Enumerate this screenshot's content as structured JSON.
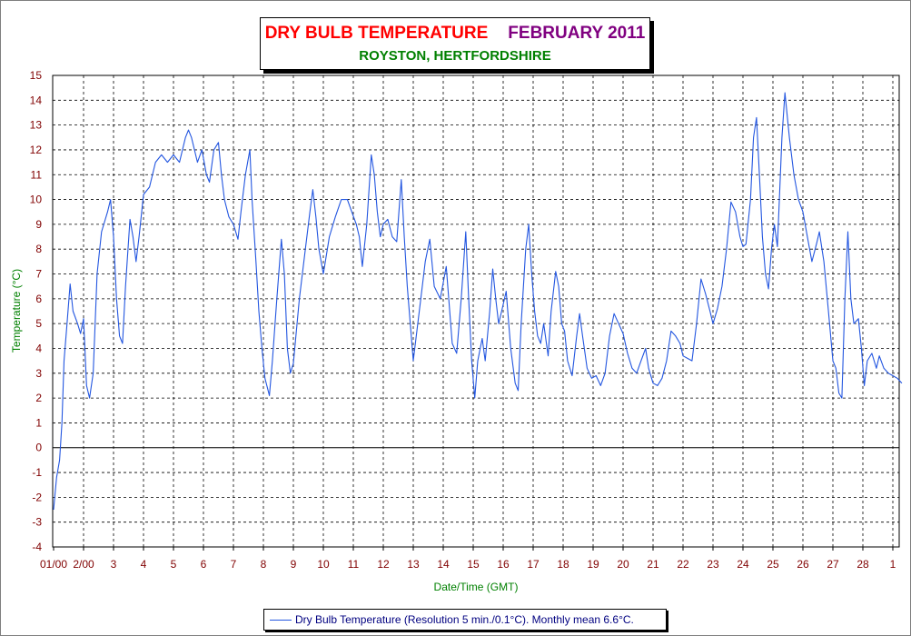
{
  "title": {
    "main": "DRY BULB TEMPERATURE",
    "date": "FEBRUARY 2011",
    "subtitle": "ROYSTON, HERTFORDSHIRE"
  },
  "colors": {
    "title_main": "#ff0000",
    "title_date": "#800080",
    "subtitle": "#008000",
    "axis_labels": "#008000",
    "tick_labels": "#800000",
    "series": "#2356e0",
    "grid": "#000000",
    "legend_text": "#000080"
  },
  "legend": {
    "text": "Dry Bulb Temperature (Resolution 5 min./0.1°C). Monthly mean 6.6°C.",
    "placement": "bottom-center"
  },
  "chart_data": {
    "type": "line",
    "xlabel": "Date/Time (GMT)",
    "ylabel": "Temperature (°C)",
    "ylim": [
      -4,
      15
    ],
    "xlim": [
      1,
      29.3
    ],
    "grid": true,
    "y_ticks": [
      "15",
      "14",
      "13",
      "12",
      "11",
      "10",
      "9",
      "8",
      "7",
      "6",
      "5",
      "4",
      "3",
      "2",
      "1",
      "0",
      "-1",
      "-2",
      "-3",
      "-4"
    ],
    "x_ticks": [
      {
        "x": 1,
        "label": "01/00"
      },
      {
        "x": 2,
        "label": "2/00"
      },
      {
        "x": 3,
        "label": "3"
      },
      {
        "x": 4,
        "label": "4"
      },
      {
        "x": 5,
        "label": "5"
      },
      {
        "x": 6,
        "label": "6"
      },
      {
        "x": 7,
        "label": "7"
      },
      {
        "x": 8,
        "label": "8"
      },
      {
        "x": 9,
        "label": "9"
      },
      {
        "x": 10,
        "label": "10"
      },
      {
        "x": 11,
        "label": "11"
      },
      {
        "x": 12,
        "label": "12"
      },
      {
        "x": 13,
        "label": "13"
      },
      {
        "x": 14,
        "label": "14"
      },
      {
        "x": 15,
        "label": "15"
      },
      {
        "x": 16,
        "label": "16"
      },
      {
        "x": 17,
        "label": "17"
      },
      {
        "x": 18,
        "label": "18"
      },
      {
        "x": 19,
        "label": "19"
      },
      {
        "x": 20,
        "label": "20"
      },
      {
        "x": 21,
        "label": "21"
      },
      {
        "x": 22,
        "label": "22"
      },
      {
        "x": 23,
        "label": "23"
      },
      {
        "x": 24,
        "label": "24"
      },
      {
        "x": 25,
        "label": "25"
      },
      {
        "x": 26,
        "label": "26"
      },
      {
        "x": 27,
        "label": "27"
      },
      {
        "x": 28,
        "label": "28"
      },
      {
        "x": 29,
        "label": "1"
      }
    ],
    "series": [
      {
        "name": "Dry Bulb Temperature",
        "points": [
          [
            1.0,
            -2.5
          ],
          [
            1.1,
            -1.2
          ],
          [
            1.2,
            -0.5
          ],
          [
            1.28,
            1.0
          ],
          [
            1.35,
            3.5
          ],
          [
            1.45,
            5.0
          ],
          [
            1.55,
            6.6
          ],
          [
            1.65,
            5.5
          ],
          [
            1.8,
            5.0
          ],
          [
            1.9,
            4.6
          ],
          [
            2.0,
            5.2
          ],
          [
            2.1,
            2.5
          ],
          [
            2.2,
            2.0
          ],
          [
            2.32,
            3.0
          ],
          [
            2.45,
            7.0
          ],
          [
            2.6,
            8.7
          ],
          [
            2.8,
            9.5
          ],
          [
            2.9,
            10.0
          ],
          [
            3.0,
            8.5
          ],
          [
            3.1,
            6.0
          ],
          [
            3.2,
            4.5
          ],
          [
            3.3,
            4.2
          ],
          [
            3.4,
            6.5
          ],
          [
            3.55,
            9.2
          ],
          [
            3.65,
            8.5
          ],
          [
            3.75,
            7.5
          ],
          [
            3.85,
            8.5
          ],
          [
            4.0,
            10.2
          ],
          [
            4.2,
            10.5
          ],
          [
            4.4,
            11.5
          ],
          [
            4.6,
            11.8
          ],
          [
            4.8,
            11.5
          ],
          [
            5.0,
            11.8
          ],
          [
            5.2,
            11.5
          ],
          [
            5.4,
            12.5
          ],
          [
            5.5,
            12.8
          ],
          [
            5.6,
            12.5
          ],
          [
            5.8,
            11.5
          ],
          [
            5.95,
            12.0
          ],
          [
            6.1,
            11.0
          ],
          [
            6.2,
            10.7
          ],
          [
            6.35,
            12.0
          ],
          [
            6.5,
            12.3
          ],
          [
            6.6,
            11.0
          ],
          [
            6.7,
            10.0
          ],
          [
            6.85,
            9.3
          ],
          [
            7.0,
            9.0
          ],
          [
            7.15,
            8.4
          ],
          [
            7.25,
            9.5
          ],
          [
            7.4,
            11.0
          ],
          [
            7.55,
            12.0
          ],
          [
            7.62,
            10.0
          ],
          [
            7.75,
            7.5
          ],
          [
            7.85,
            5.5
          ],
          [
            7.95,
            4.0
          ],
          [
            8.05,
            2.8
          ],
          [
            8.2,
            2.1
          ],
          [
            8.3,
            3.5
          ],
          [
            8.45,
            6.0
          ],
          [
            8.6,
            8.4
          ],
          [
            8.7,
            7.0
          ],
          [
            8.8,
            4.0
          ],
          [
            8.9,
            3.0
          ],
          [
            9.0,
            3.4
          ],
          [
            9.2,
            6.0
          ],
          [
            9.4,
            8.0
          ],
          [
            9.55,
            9.5
          ],
          [
            9.65,
            10.4
          ],
          [
            9.75,
            9.3
          ],
          [
            9.85,
            8.0
          ],
          [
            10.0,
            7.0
          ],
          [
            10.2,
            8.5
          ],
          [
            10.4,
            9.3
          ],
          [
            10.6,
            10.0
          ],
          [
            10.8,
            10.0
          ],
          [
            10.95,
            9.5
          ],
          [
            11.1,
            9.0
          ],
          [
            11.2,
            8.5
          ],
          [
            11.3,
            7.3
          ],
          [
            11.45,
            9.0
          ],
          [
            11.6,
            11.8
          ],
          [
            11.7,
            11.0
          ],
          [
            11.8,
            9.5
          ],
          [
            11.9,
            8.5
          ],
          [
            12.0,
            9.0
          ],
          [
            12.15,
            9.2
          ],
          [
            12.3,
            8.5
          ],
          [
            12.45,
            8.3
          ],
          [
            12.6,
            10.8
          ],
          [
            12.7,
            8.5
          ],
          [
            12.8,
            6.5
          ],
          [
            12.9,
            5.0
          ],
          [
            13.0,
            3.5
          ],
          [
            13.1,
            4.5
          ],
          [
            13.25,
            6.0
          ],
          [
            13.4,
            7.5
          ],
          [
            13.55,
            8.4
          ],
          [
            13.7,
            6.5
          ],
          [
            13.9,
            6.0
          ],
          [
            14.1,
            7.3
          ],
          [
            14.3,
            4.2
          ],
          [
            14.45,
            3.8
          ],
          [
            14.6,
            6.0
          ],
          [
            14.75,
            8.7
          ],
          [
            14.85,
            6.0
          ],
          [
            14.95,
            3.5
          ],
          [
            15.05,
            2.0
          ],
          [
            15.15,
            3.5
          ],
          [
            15.3,
            4.4
          ],
          [
            15.4,
            3.5
          ],
          [
            15.55,
            5.5
          ],
          [
            15.65,
            7.2
          ],
          [
            15.75,
            6.0
          ],
          [
            15.85,
            5.0
          ],
          [
            15.95,
            5.5
          ],
          [
            16.1,
            6.3
          ],
          [
            16.25,
            4.0
          ],
          [
            16.4,
            2.6
          ],
          [
            16.5,
            2.3
          ],
          [
            16.6,
            5.0
          ],
          [
            16.75,
            8.0
          ],
          [
            16.85,
            9.0
          ],
          [
            16.95,
            7.0
          ],
          [
            17.05,
            5.5
          ],
          [
            17.15,
            4.5
          ],
          [
            17.25,
            4.2
          ],
          [
            17.35,
            5.0
          ],
          [
            17.5,
            3.7
          ],
          [
            17.6,
            5.5
          ],
          [
            17.75,
            7.1
          ],
          [
            17.85,
            6.5
          ],
          [
            17.95,
            5.0
          ],
          [
            18.05,
            4.7
          ],
          [
            18.15,
            3.5
          ],
          [
            18.3,
            2.9
          ],
          [
            18.45,
            4.5
          ],
          [
            18.55,
            5.4
          ],
          [
            18.65,
            4.5
          ],
          [
            18.8,
            3.2
          ],
          [
            18.95,
            2.8
          ],
          [
            19.1,
            2.9
          ],
          [
            19.25,
            2.5
          ],
          [
            19.4,
            3.0
          ],
          [
            19.55,
            4.5
          ],
          [
            19.7,
            5.4
          ],
          [
            19.85,
            5.0
          ],
          [
            20.0,
            4.6
          ],
          [
            20.15,
            3.8
          ],
          [
            20.3,
            3.2
          ],
          [
            20.45,
            3.0
          ],
          [
            20.6,
            3.5
          ],
          [
            20.75,
            4.0
          ],
          [
            20.85,
            3.2
          ],
          [
            21.0,
            2.6
          ],
          [
            21.15,
            2.5
          ],
          [
            21.3,
            2.8
          ],
          [
            21.45,
            3.5
          ],
          [
            21.6,
            4.7
          ],
          [
            21.75,
            4.5
          ],
          [
            21.9,
            4.2
          ],
          [
            22.0,
            3.7
          ],
          [
            22.15,
            3.6
          ],
          [
            22.3,
            3.5
          ],
          [
            22.45,
            5.0
          ],
          [
            22.6,
            6.8
          ],
          [
            22.75,
            6.2
          ],
          [
            22.9,
            5.5
          ],
          [
            23.0,
            5.0
          ],
          [
            23.15,
            5.6
          ],
          [
            23.3,
            6.5
          ],
          [
            23.45,
            8.0
          ],
          [
            23.6,
            9.9
          ],
          [
            23.75,
            9.5
          ],
          [
            23.9,
            8.5
          ],
          [
            24.0,
            8.1
          ],
          [
            24.1,
            8.2
          ],
          [
            24.25,
            10.0
          ],
          [
            24.35,
            12.5
          ],
          [
            24.45,
            13.3
          ],
          [
            24.55,
            11.0
          ],
          [
            24.65,
            8.5
          ],
          [
            24.75,
            7.0
          ],
          [
            24.85,
            6.4
          ],
          [
            24.95,
            8.0
          ],
          [
            25.05,
            9.0
          ],
          [
            25.15,
            8.1
          ],
          [
            25.3,
            12.5
          ],
          [
            25.4,
            14.3
          ],
          [
            25.55,
            12.5
          ],
          [
            25.7,
            11.0
          ],
          [
            25.85,
            10.0
          ],
          [
            26.0,
            9.5
          ],
          [
            26.15,
            8.5
          ],
          [
            26.3,
            7.5
          ],
          [
            26.45,
            8.2
          ],
          [
            26.55,
            8.7
          ],
          [
            26.7,
            7.5
          ],
          [
            26.85,
            5.5
          ],
          [
            27.0,
            3.5
          ],
          [
            27.1,
            3.2
          ],
          [
            27.2,
            2.2
          ],
          [
            27.3,
            2.0
          ],
          [
            27.4,
            6.0
          ],
          [
            27.5,
            8.7
          ],
          [
            27.6,
            6.0
          ],
          [
            27.7,
            5.0
          ],
          [
            27.85,
            5.2
          ],
          [
            27.95,
            4.0
          ],
          [
            28.05,
            2.5
          ],
          [
            28.15,
            3.5
          ],
          [
            28.3,
            3.8
          ],
          [
            28.45,
            3.2
          ],
          [
            28.55,
            3.7
          ],
          [
            28.7,
            3.2
          ],
          [
            28.85,
            3.0
          ],
          [
            29.0,
            2.9
          ],
          [
            29.15,
            2.8
          ],
          [
            29.3,
            2.6
          ]
        ]
      }
    ]
  }
}
